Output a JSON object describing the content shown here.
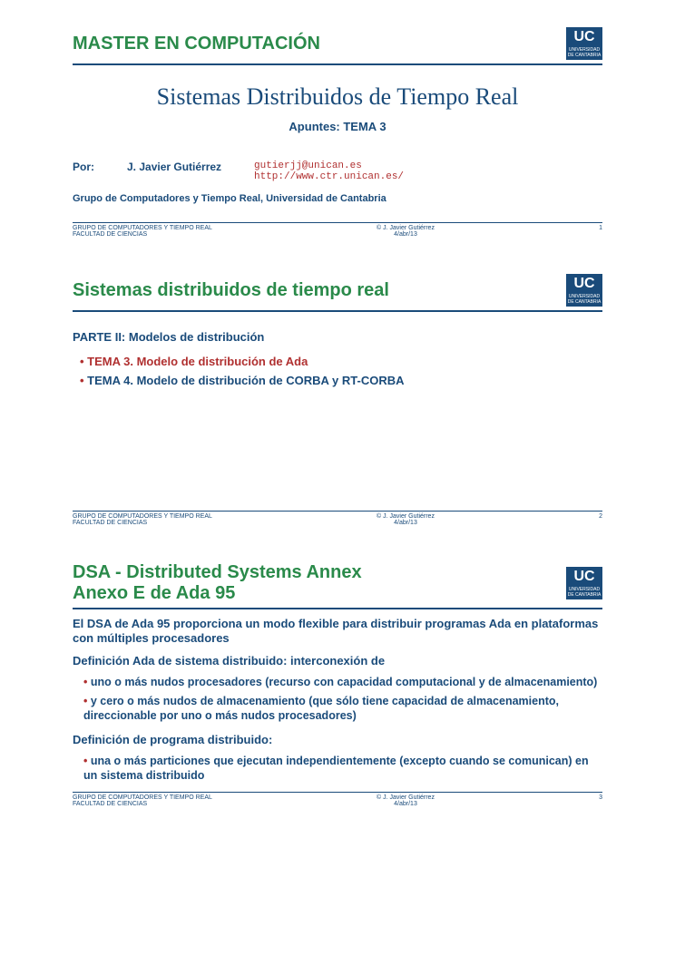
{
  "logo": {
    "main": "UC",
    "sub1": "UNIVERSIDAD",
    "sub2": "DE CANTABRIA"
  },
  "slide1": {
    "master": "MASTER EN COMPUTACIÓN",
    "title": "Sistemas Distribuidos de Tiempo Real",
    "subtitle": "Apuntes: TEMA 3",
    "por": "Por:",
    "author": "J. Javier Gutiérrez",
    "email": "gutierjj@unican.es",
    "url": "http://www.ctr.unican.es/",
    "group": "Grupo de Computadores y Tiempo Real, Universidad de Cantabria",
    "pagenum": "1"
  },
  "slide2": {
    "title": "Sistemas distribuidos de tiempo real",
    "parte": "PARTE II: Modelos de distribución",
    "tema3": "TEMA 3. Modelo de distribución de Ada",
    "tema4": "TEMA 4. Modelo de distribución de CORBA y RT-CORBA",
    "pagenum": "2"
  },
  "slide3": {
    "title_l1": "DSA - Distributed Systems Annex",
    "title_l2": "Anexo E de Ada 95",
    "p1": "El DSA de Ada 95 proporciona un modo flexible para distribuir programas Ada en plataformas con múltiples procesadores",
    "p2": "Definición Ada de sistema distribuido: interconexión de",
    "b1": "uno o más nudos procesadores (recurso con capacidad computacional y de almacenamiento)",
    "b2": "y cero o más nudos de almacenamiento (que sólo tiene capacidad de almacenamiento, direccionable por uno o más nudos procesadores)",
    "p3": "Definición de programa distribuido:",
    "b3": "una o más particiones que ejecutan independientemente (excepto cuando se comunican) en un sistema distribuido",
    "pagenum": "3"
  },
  "footer": {
    "left1": "GRUPO DE COMPUTADORES Y TIEMPO REAL",
    "left2": "FACULTAD DE CIENCIAS",
    "center1": "© J. Javier Gutiérrez",
    "center2": "4/abr/13"
  }
}
